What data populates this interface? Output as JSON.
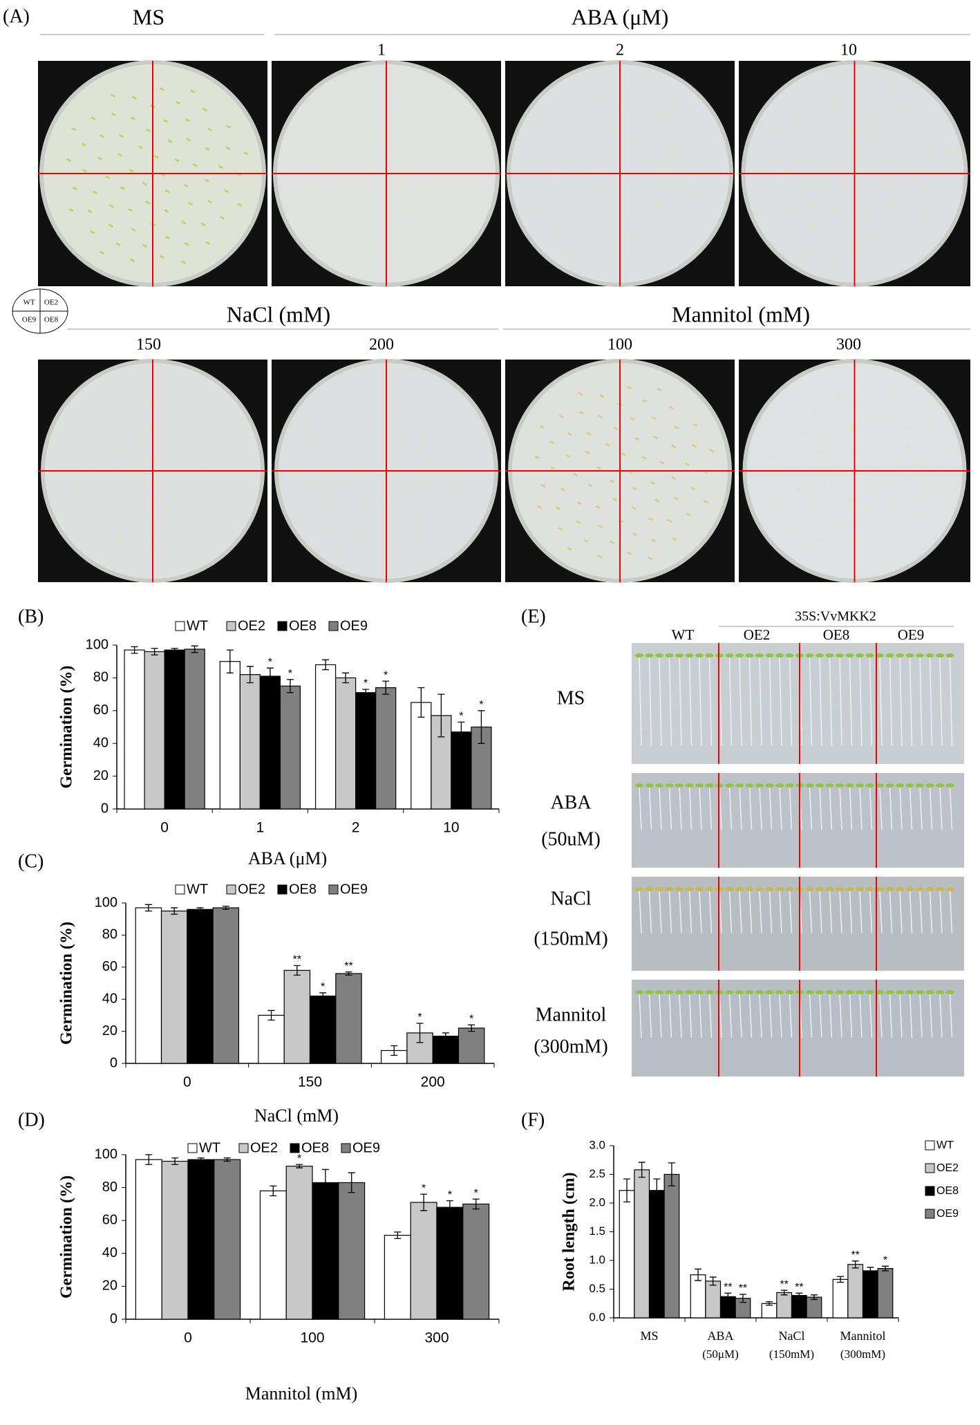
{
  "figure": {
    "panel_a": {
      "label": "(A)",
      "ms": "MS",
      "aba": "ABA (μM)",
      "aba_doses": [
        "1",
        "2",
        "10"
      ],
      "nacl": "NaCl (mM)",
      "nacl_doses": [
        "150",
        "200"
      ],
      "mannitol": "Mannitol (mM)",
      "mannitol_doses": [
        "100",
        "300"
      ],
      "key": [
        "WT",
        "OE2",
        "OE9",
        "OE8"
      ]
    },
    "panel_e": {
      "label": "(E)",
      "construct": "35S:VvMKK2",
      "lines": [
        "WT",
        "OE2",
        "OE8",
        "OE9"
      ],
      "rows": [
        [
          "MS"
        ],
        [
          "ABA",
          "(50uM)"
        ],
        [
          "NaCl",
          "(150mM)"
        ],
        [
          "Mannitol",
          "(300mM)"
        ]
      ]
    }
  },
  "chart_data": [
    {
      "type": "bar",
      "panel": "(B)",
      "y_label": "Germination (%)",
      "x_label": "ABA (μM)",
      "categories": [
        "0",
        "1",
        "2",
        "10"
      ],
      "ylim": [
        0,
        100
      ],
      "yticks": [
        0,
        20,
        40,
        60,
        80,
        100
      ],
      "legend": "top",
      "series": [
        {
          "name": "WT",
          "color": "#ffffff",
          "values": [
            97,
            90,
            88,
            65
          ],
          "errors": [
            2,
            7,
            3,
            9
          ],
          "significance": [
            null,
            null,
            null,
            null
          ]
        },
        {
          "name": "OE2",
          "color": "#c8c8c8",
          "values": [
            96,
            82,
            80,
            57
          ],
          "errors": [
            2,
            5,
            3,
            13
          ],
          "significance": [
            null,
            null,
            null,
            null
          ]
        },
        {
          "name": "OE8",
          "color": "#000000",
          "values": [
            97,
            81,
            71,
            47
          ],
          "errors": [
            1,
            5,
            2,
            6
          ],
          "significance": [
            null,
            "*",
            "*",
            "*"
          ]
        },
        {
          "name": "OE9",
          "color": "#808080",
          "values": [
            97.5,
            75,
            74,
            50
          ],
          "errors": [
            2,
            4,
            4,
            10
          ],
          "significance": [
            null,
            "*",
            "*",
            "*"
          ]
        }
      ]
    },
    {
      "type": "bar",
      "panel": "(C)",
      "y_label": "Germination (%)",
      "x_label": "NaCl (mM)",
      "categories": [
        "0",
        "150",
        "200"
      ],
      "ylim": [
        0,
        100
      ],
      "yticks": [
        0,
        20,
        40,
        60,
        80,
        100
      ],
      "legend": "top",
      "series": [
        {
          "name": "WT",
          "color": "#ffffff",
          "values": [
            97,
            30,
            8
          ],
          "errors": [
            2,
            3,
            3
          ],
          "significance": [
            null,
            null,
            null
          ]
        },
        {
          "name": "OE2",
          "color": "#c8c8c8",
          "values": [
            95,
            58,
            19
          ],
          "errors": [
            2,
            3,
            6
          ],
          "significance": [
            null,
            "**",
            "*"
          ]
        },
        {
          "name": "OE8",
          "color": "#000000",
          "values": [
            96,
            42,
            17
          ],
          "errors": [
            1,
            2,
            2
          ],
          "significance": [
            null,
            "*",
            null
          ]
        },
        {
          "name": "OE9",
          "color": "#808080",
          "values": [
            97,
            56,
            22
          ],
          "errors": [
            1,
            1,
            2
          ],
          "significance": [
            null,
            "**",
            "*"
          ]
        }
      ]
    },
    {
      "type": "bar",
      "panel": "(D)",
      "y_label": "Germination (%)",
      "x_label": "Mannitol (mM)",
      "categories": [
        "0",
        "100",
        "300"
      ],
      "ylim": [
        0,
        100
      ],
      "yticks": [
        0,
        20,
        40,
        60,
        80,
        100
      ],
      "legend": "top",
      "series": [
        {
          "name": "WT",
          "color": "#ffffff",
          "values": [
            97,
            78,
            51
          ],
          "errors": [
            3,
            3,
            2
          ],
          "significance": [
            null,
            null,
            null
          ]
        },
        {
          "name": "OE2",
          "color": "#c8c8c8",
          "values": [
            96,
            93,
            71
          ],
          "errors": [
            2,
            1,
            5
          ],
          "significance": [
            null,
            "*",
            "*"
          ]
        },
        {
          "name": "OE8",
          "color": "#000000",
          "values": [
            97,
            83,
            68
          ],
          "errors": [
            1,
            8,
            4
          ],
          "significance": [
            null,
            null,
            "*"
          ]
        },
        {
          "name": "OE9",
          "color": "#808080",
          "values": [
            97,
            83,
            70
          ],
          "errors": [
            1,
            6,
            3
          ],
          "significance": [
            null,
            null,
            "*"
          ]
        }
      ]
    },
    {
      "type": "bar",
      "panel": "(F)",
      "y_label": "Root length (cm)",
      "categories": [
        "MS",
        "ABA",
        "NaCl",
        "Mannitol"
      ],
      "category_sublabels": [
        null,
        "(50μM)",
        "(150mM)",
        "(300mM)"
      ],
      "ylim": [
        0,
        3
      ],
      "yticks": [
        {
          "value": 0,
          "label": "0.0"
        },
        0.5,
        {
          "value": 1,
          "label": "1.0"
        },
        1.5,
        {
          "value": 2,
          "label": "2.0"
        },
        2.5,
        {
          "value": 3,
          "label": "3.0"
        }
      ],
      "legend": "upper right",
      "series": [
        {
          "name": "WT",
          "color": "#ffffff",
          "values": [
            2.22,
            0.75,
            0.25,
            0.67
          ],
          "errors": [
            0.2,
            0.1,
            0.03,
            0.05
          ],
          "significance": [
            null,
            null,
            null,
            null
          ]
        },
        {
          "name": "OE2",
          "color": "#c8c8c8",
          "values": [
            2.58,
            0.64,
            0.44,
            0.93
          ],
          "errors": [
            0.13,
            0.07,
            0.04,
            0.06
          ],
          "significance": [
            null,
            null,
            "**",
            "**"
          ]
        },
        {
          "name": "OE8",
          "color": "#000000",
          "values": [
            2.22,
            0.37,
            0.39,
            0.82
          ],
          "errors": [
            0.2,
            0.06,
            0.04,
            0.06
          ],
          "significance": [
            null,
            "**",
            "**",
            null
          ]
        },
        {
          "name": "OE9",
          "color": "#808080",
          "values": [
            2.5,
            0.34,
            0.36,
            0.86
          ],
          "errors": [
            0.2,
            0.07,
            0.04,
            0.04
          ],
          "significance": [
            null,
            "**",
            null,
            "*"
          ]
        }
      ]
    }
  ]
}
